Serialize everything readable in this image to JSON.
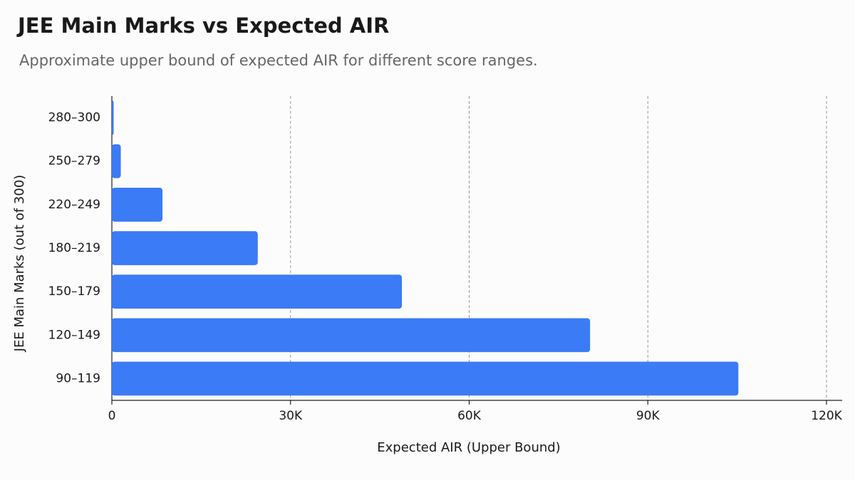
{
  "chart_data": {
    "type": "barh",
    "title": "JEE Main Marks vs Expected AIR",
    "subtitle": "Approximate upper bound of expected AIR for different score ranges.",
    "x_label": "Expected AIR (Upper Bound)",
    "y_label": "JEE Main Marks (out of 300)",
    "categories": [
      "280–300",
      "250–279",
      "220–249",
      "180–219",
      "150–179",
      "120–149",
      "90–119"
    ],
    "values": [
      300,
      1500,
      8500,
      24500,
      48700,
      80300,
      105200
    ],
    "color": "#3b7bf5",
    "xlim": [
      0,
      120000
    ],
    "xticks": [
      0,
      {
        "value": 30000,
        "label": "30K"
      },
      {
        "value": 60000,
        "label": "60K"
      },
      {
        "value": 90000,
        "label": "90K"
      },
      {
        "value": 120000,
        "label": "120K"
      }
    ],
    "grid": true
  }
}
